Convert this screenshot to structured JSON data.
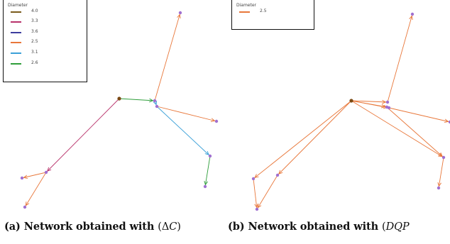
{
  "colors": {
    "4.0": "#7a5b1c",
    "3.3": "#b8326a",
    "3.6": "#3d3d9e",
    "2.5": "#e8773a",
    "3.1": "#3ba0d8",
    "2.6": "#2e9e3a",
    "node_purple": "#a070d0",
    "node_root": "#7a4a14"
  },
  "panel_a": {
    "legend": {
      "title": "Diameter",
      "entries": [
        {
          "label": "4.0",
          "color": "#7a5b1c"
        },
        {
          "label": "3.3",
          "color": "#b8326a"
        },
        {
          "label": "3.6",
          "color": "#3d3d9e"
        },
        {
          "label": "2.5",
          "color": "#e8773a"
        },
        {
          "label": "3.1",
          "color": "#3ba0d8"
        },
        {
          "label": "2.6",
          "color": "#2e9e3a"
        }
      ]
    },
    "caption_prefix": "(a) Network obtained with ",
    "caption_math_open": "(Δ",
    "caption_math_var": "C",
    "caption_math_close": ")"
  },
  "panel_b": {
    "legend": {
      "title": "Diameter",
      "entries": [
        {
          "label": "2.5",
          "color": "#e8773a"
        }
      ]
    },
    "caption_prefix": "(b) Network obtained with ",
    "caption_math_open": "(",
    "caption_math_var": "DQP"
  }
}
